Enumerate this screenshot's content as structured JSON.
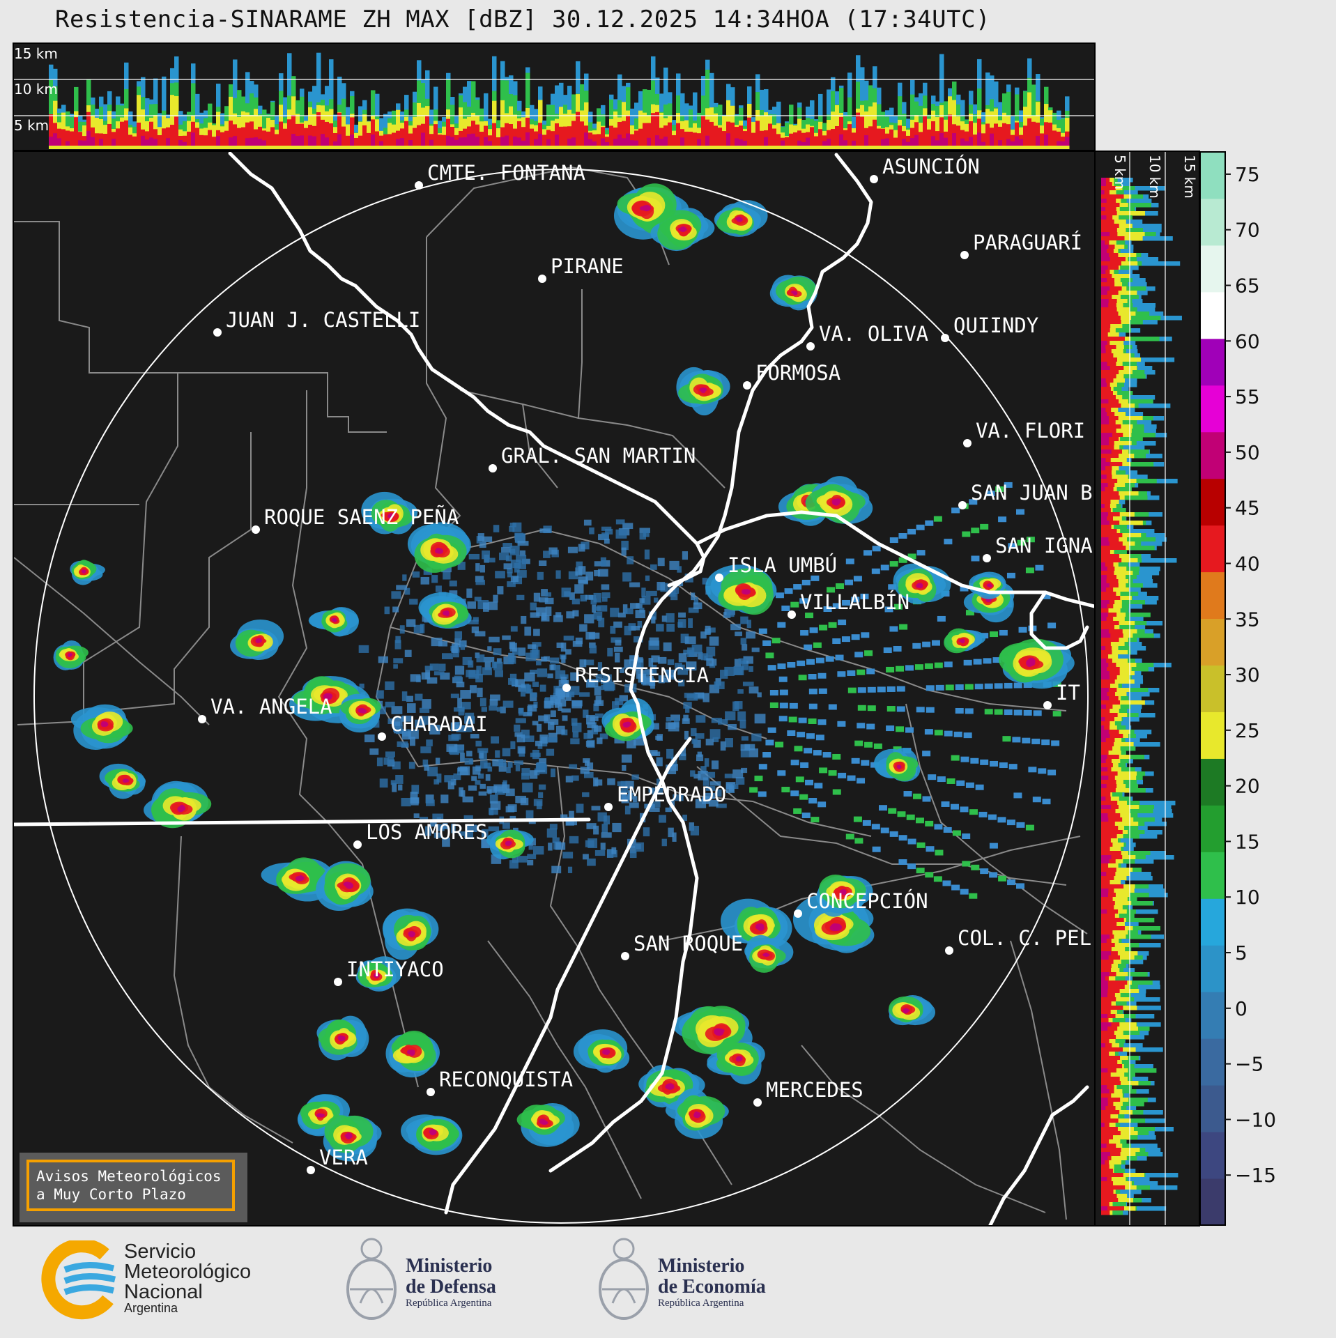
{
  "title": "Resistencia-SINARAME ZH MAX [dBZ] 30.12.2025 14:34HOA (17:34UTC)",
  "top_section": {
    "km_labels": [
      "15 km",
      "10 km",
      "5 km"
    ]
  },
  "side_section": {
    "km_labels": [
      "5 km",
      "10 km",
      "15 km"
    ]
  },
  "colorbar": {
    "ticks": [
      "75",
      "70",
      "65",
      "60",
      "55",
      "50",
      "45",
      "40",
      "35",
      "30",
      "25",
      "20",
      "15",
      "10",
      "5",
      "0",
      "−5",
      "−10",
      "−15"
    ],
    "colors": [
      "#3b3b6b",
      "#3d4780",
      "#3c5a8e",
      "#3a6aa0",
      "#347db3",
      "#2c93c8",
      "#26a7dc",
      "#2fbf4b",
      "#239e2f",
      "#1d7a24",
      "#e8e82c",
      "#c9c02a",
      "#d9a028",
      "#e07a1c",
      "#e6191f",
      "#b80000",
      "#c10075",
      "#e600d6",
      "#a000b8",
      "#ffffff",
      "#e6f6ee",
      "#b8ead2",
      "#8fdfbf"
    ]
  },
  "cities": [
    "CMTE. FONTANA",
    "PIRANE",
    "ASUNCIÓN",
    "PARAGUARÍ",
    "JUAN J. CASTELLI",
    "QUIINDY",
    "VA. OLIVA",
    "FORMOSA",
    "VA. FLORI",
    "GRAL. SAN MARTIN",
    "SAN JUAN B",
    "ROQUE SAENZ PEÑA",
    "SAN IGNA",
    "ISLA UMBÚ",
    "VILLALBÍN",
    "RESISTENCIA",
    "VA. ANGELA",
    "CHARADAI",
    "IT",
    "EMPEDRADO",
    "LOS AMORES",
    "CONCEPCIÓN",
    "COL. C. PEL",
    "SAN ROQUE",
    "INTIYACO",
    "RECONQUISTA",
    "MERCEDES",
    "VERA"
  ],
  "notice": {
    "line1": "Avisos Meteorológicos",
    "line2": "a Muy Corto Plazo"
  },
  "logos": {
    "smn": {
      "line1": "Servicio",
      "line2": "Meteorológico",
      "line3": "Nacional",
      "sub": "Argentina"
    },
    "defensa": {
      "line1": "Ministerio",
      "line2": "de Defensa",
      "sub": "República Argentina"
    },
    "economia": {
      "line1": "Ministerio",
      "line2": "de Economía",
      "sub": "República Argentina"
    }
  },
  "palette": {
    "background": "#1a1a1a",
    "page": "#e8e8e8",
    "light_echo": "#3f86c4",
    "river": "#ffffff",
    "boundary": "#8a8a8a"
  }
}
